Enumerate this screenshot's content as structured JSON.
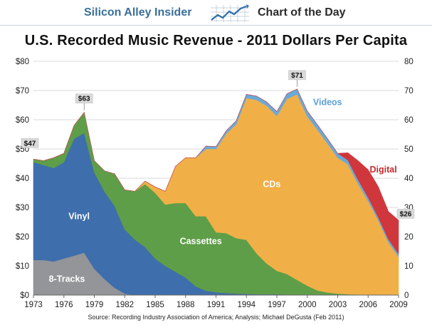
{
  "header": {
    "brand_left": "Silicon Alley Insider",
    "brand_right": "Chart of the Day",
    "logo_icon": "rising-line-chart-icon"
  },
  "chart_data": {
    "type": "area",
    "stacked": true,
    "title": "U.S. Recorded Music Revenue - 2011 Dollars Per Capita",
    "source": "Source: Recording Industry Association of America; Analysis; Michael DeGusta (Feb 2011)",
    "x": [
      1973,
      1974,
      1975,
      1976,
      1977,
      1978,
      1979,
      1980,
      1981,
      1982,
      1983,
      1984,
      1985,
      1986,
      1987,
      1988,
      1989,
      1990,
      1991,
      1992,
      1993,
      1994,
      1995,
      1996,
      1997,
      1998,
      1999,
      2000,
      2001,
      2002,
      2003,
      2004,
      2005,
      2006,
      2007,
      2008,
      2009
    ],
    "xlim": [
      1973,
      2009
    ],
    "ylim": [
      0,
      80
    ],
    "x_ticks": [
      "1973",
      "1976",
      "1979",
      "1982",
      "1985",
      "1988",
      "1991",
      "1994",
      "1997",
      "2000",
      "2003",
      "2006",
      "2009"
    ],
    "y_ticks": [
      "$0",
      "$10",
      "$20",
      "$30",
      "$40",
      "$50",
      "$60",
      "$70",
      "$80"
    ],
    "y_ticks_right": [
      "0",
      "10",
      "20",
      "30",
      "40",
      "50",
      "60",
      "70",
      "80"
    ],
    "series": [
      {
        "name": "8-Tracks",
        "color": "#939598",
        "label_color": "#ffffff",
        "values": [
          12,
          12,
          11.5,
          12.5,
          13.5,
          14.5,
          9,
          5.5,
          2.5,
          0.5,
          0,
          0,
          0,
          0,
          0,
          0,
          0,
          0,
          0,
          0,
          0,
          0,
          0,
          0,
          0,
          0,
          0,
          0,
          0,
          0,
          0,
          0,
          0,
          0,
          0,
          0,
          0
        ]
      },
      {
        "name": "Vinyl",
        "color": "#3f6eac",
        "label_color": "#ffffff",
        "values": [
          33.5,
          32.5,
          32,
          33,
          40,
          41,
          33,
          30,
          28,
          22,
          19,
          16.5,
          12.5,
          10,
          8,
          6,
          3,
          1.5,
          1,
          0.7,
          0.5,
          0.4,
          0.3,
          0.3,
          0.3,
          0.2,
          0.2,
          0.2,
          0.1,
          0.1,
          0.1,
          0.1,
          0.1,
          0.1,
          0.1,
          0.1,
          0.1
        ]
      },
      {
        "name": "Cassettes",
        "color": "#5e9e48",
        "label_color": "#ffffff",
        "values": [
          1,
          1.5,
          3.5,
          3,
          4.5,
          7,
          4,
          7,
          11,
          13.5,
          16.5,
          21.5,
          22.5,
          21,
          23.5,
          25.5,
          24,
          25.5,
          20.5,
          20.5,
          19,
          18.5,
          14,
          10.5,
          8,
          7,
          5,
          3,
          1.5,
          0.8,
          0.4,
          0.2,
          0.1,
          0.1,
          0,
          0,
          0
        ]
      },
      {
        "name": "CDs",
        "color": "#f0b047",
        "label_color": "#ffffff",
        "values": [
          0,
          0,
          0,
          0,
          0,
          0,
          0,
          0,
          0,
          0,
          0,
          1,
          2,
          4.5,
          12.5,
          15.5,
          20,
          23,
          28.5,
          34,
          39,
          48.5,
          52.5,
          54,
          53,
          60,
          63.5,
          58,
          55,
          51,
          46.5,
          44.5,
          38,
          32,
          25.5,
          18,
          13
        ]
      },
      {
        "name": "Videos",
        "color": "#6aa9d8",
        "label_color": "#5a9fd4",
        "values": [
          0,
          0,
          0,
          0,
          0,
          0,
          0,
          0,
          0,
          0,
          0,
          0,
          0,
          0,
          0,
          0,
          0,
          1,
          0.8,
          1,
          1.2,
          1.3,
          1.3,
          1.3,
          1.5,
          1.7,
          1.8,
          1.8,
          1.7,
          1.6,
          1.5,
          1.4,
          1.3,
          1.2,
          1,
          1,
          1
        ]
      },
      {
        "name": "Digital",
        "color": "#d0373c",
        "label_color": "#c8282e",
        "values": [
          0,
          0,
          0,
          0,
          0,
          0,
          0,
          0,
          0,
          0,
          0,
          0,
          0,
          0,
          0,
          0,
          0,
          0,
          0,
          0,
          0,
          0,
          0,
          0,
          0,
          0,
          0,
          0,
          0,
          0,
          0,
          2.5,
          6.5,
          9.5,
          10.5,
          9.5,
          11.5
        ]
      }
    ],
    "annotations": [
      {
        "label": "$47",
        "x": 1973,
        "value": 47
      },
      {
        "label": "$63",
        "x": 1978,
        "value": 63
      },
      {
        "label": "$71",
        "x": 1999,
        "value": 71
      },
      {
        "label": "$26",
        "x": 2009,
        "value": 26
      }
    ],
    "series_labels": [
      {
        "series": "Vinyl",
        "text": "Vinyl",
        "x": 1977.5,
        "value": 26
      },
      {
        "series": "Cassettes",
        "text": "Cassettes",
        "x": 1989.5,
        "value": 17.5
      },
      {
        "series": "CDs",
        "text": "CDs",
        "x": 1996.5,
        "value": 37
      },
      {
        "series": "8-Tracks",
        "text": "8-Tracks",
        "x": 1976.3,
        "value": 4.5
      },
      {
        "series": "Videos",
        "text": "Videos",
        "x": 2002,
        "value": 65
      },
      {
        "series": "Digital",
        "text": "Digital",
        "x": 2007.5,
        "value": 42
      }
    ]
  }
}
